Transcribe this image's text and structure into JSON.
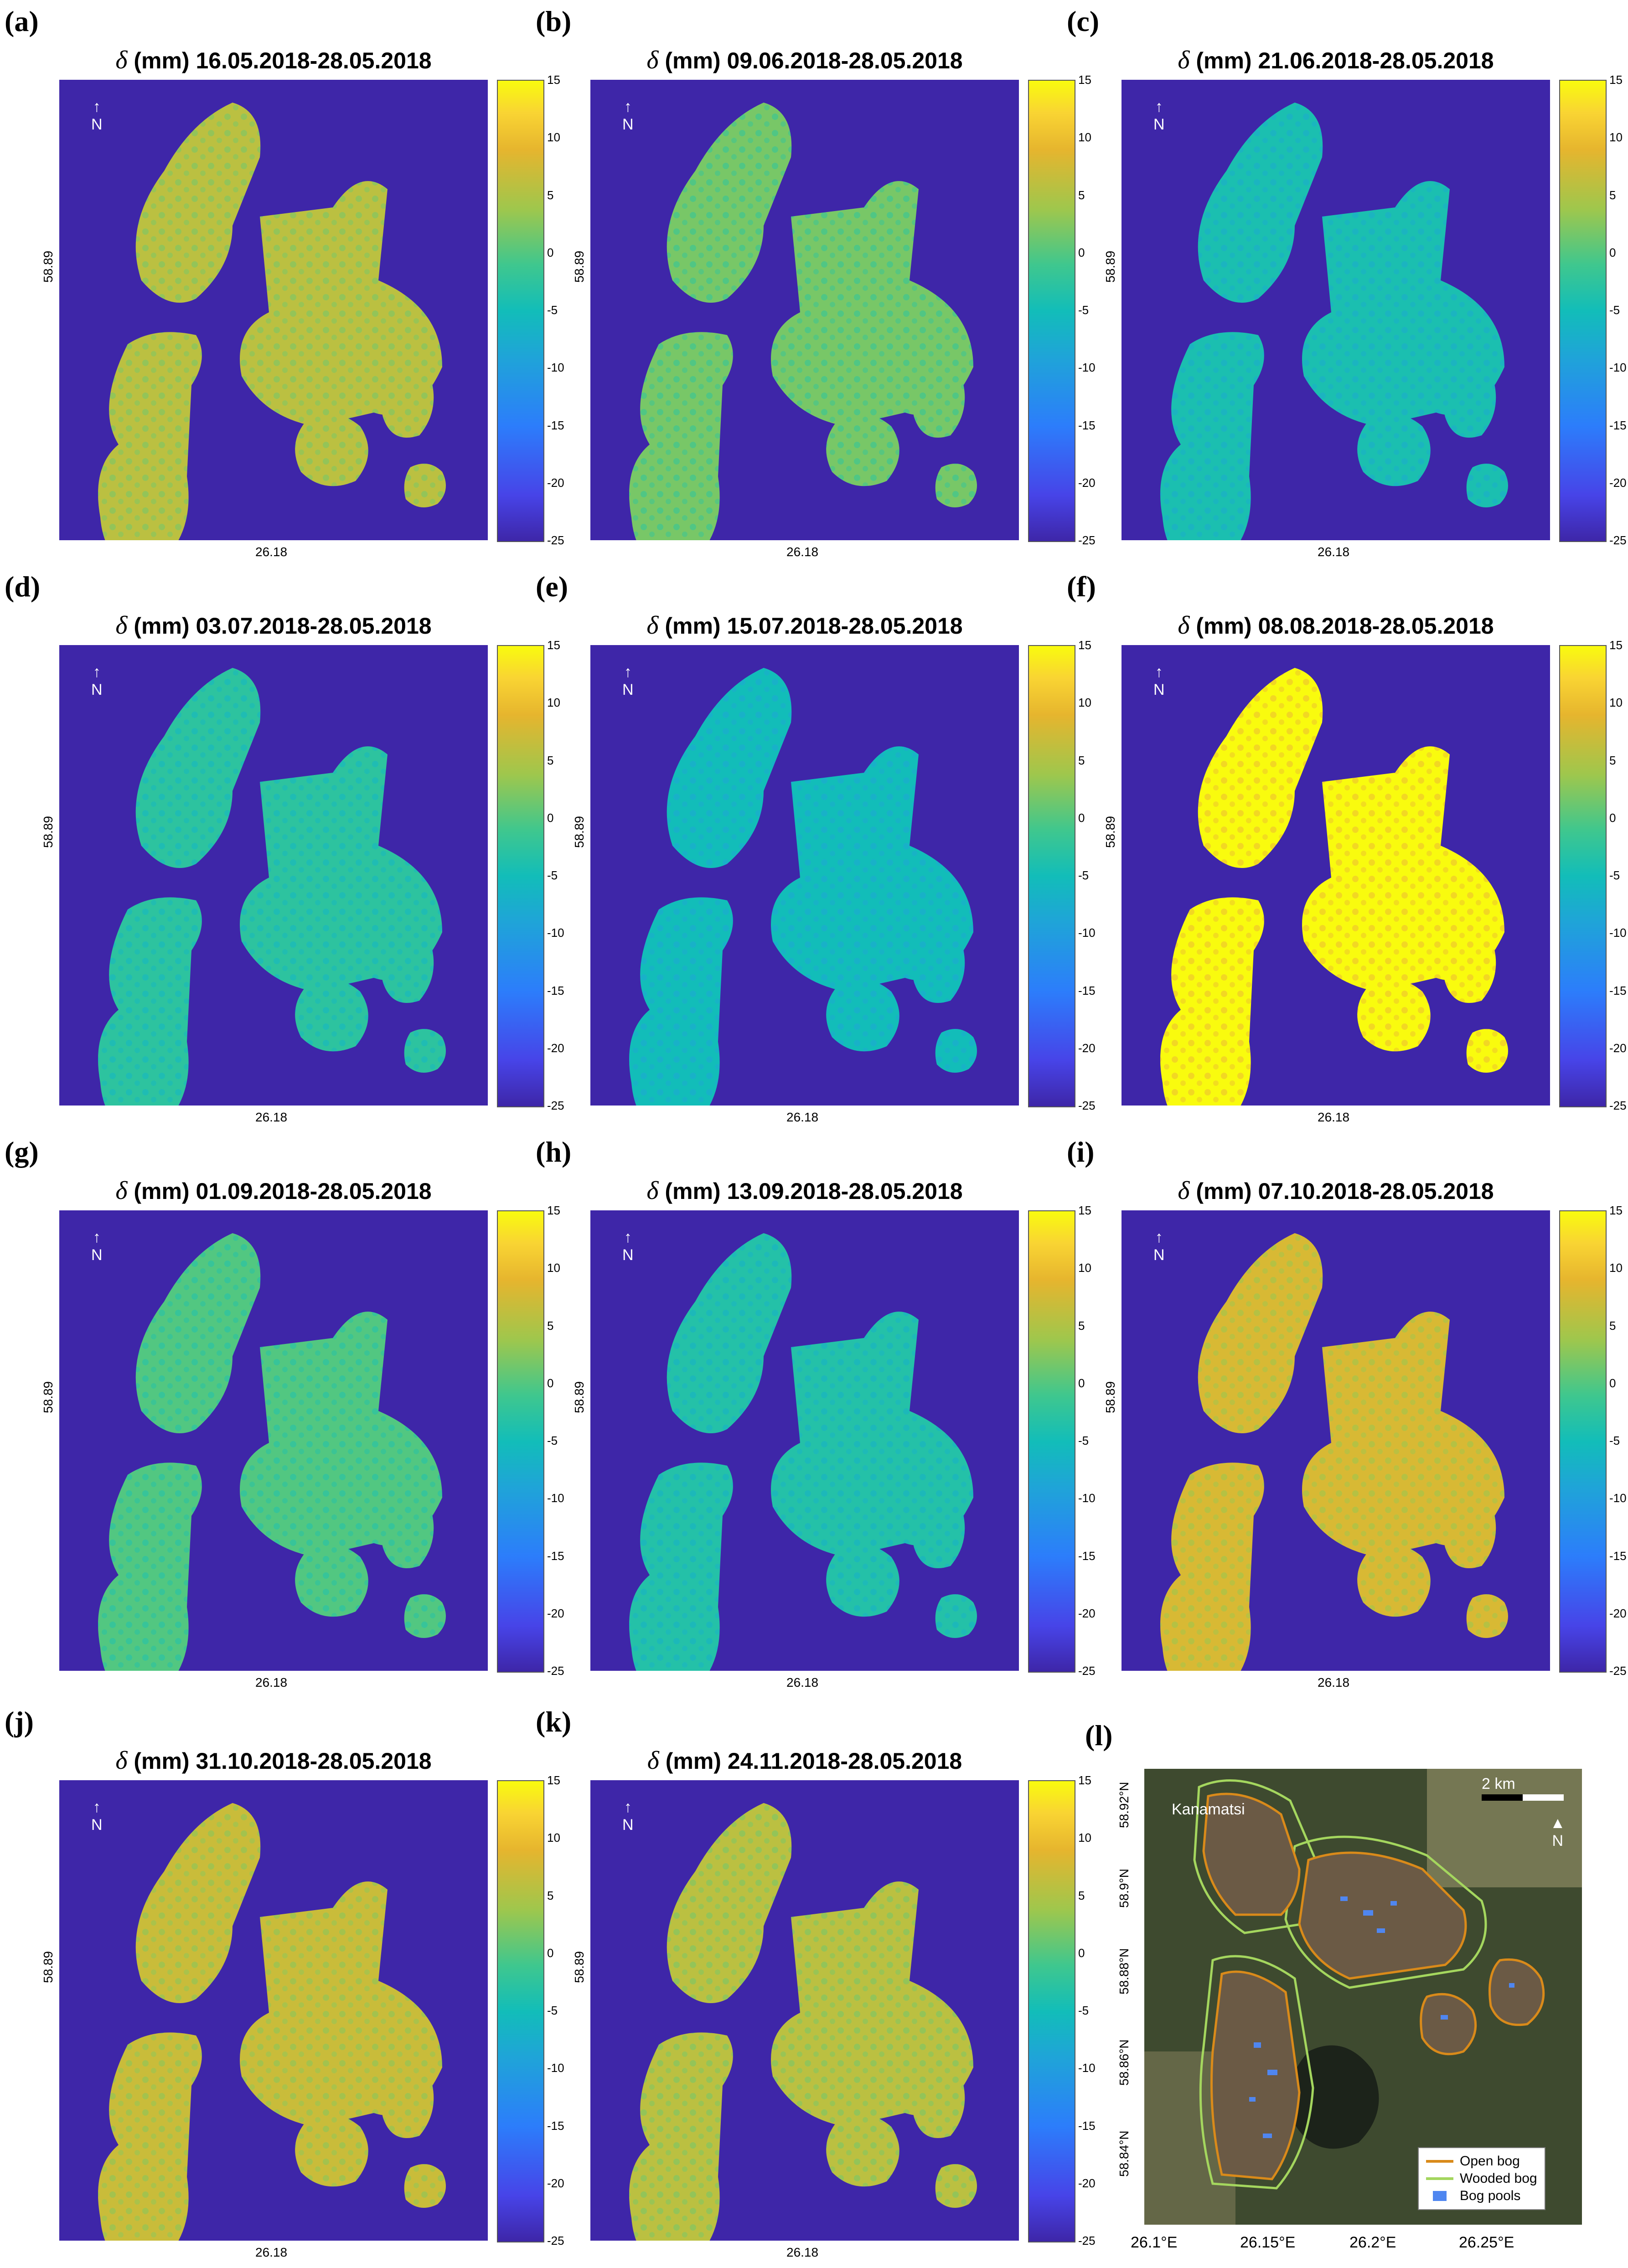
{
  "figure": {
    "colormap": "parula",
    "background_color": "#3e26a8",
    "colorbar_ticks": [
      "15",
      "10",
      "5",
      "0",
      "-5",
      "-10",
      "-15",
      "-20",
      "-25"
    ],
    "x_tick": "26.18",
    "y_tick": "58.89",
    "north_label": "N"
  },
  "chart_data": [
    {
      "type": "heatmap",
      "label": "(a)",
      "title_symbol": "δ",
      "title_text": " (mm) 16.05.2018-28.05.2018",
      "clim": [
        -25,
        15
      ],
      "dominant_value_mm": 7
    },
    {
      "type": "heatmap",
      "label": "(b)",
      "title_symbol": "δ",
      "title_text": " (mm) 09.06.2018-28.05.2018",
      "clim": [
        -25,
        15
      ],
      "dominant_value_mm": 3
    },
    {
      "type": "heatmap",
      "label": "(c)",
      "title_symbol": "δ",
      "title_text": " (mm) 21.06.2018-28.05.2018",
      "clim": [
        -25,
        15
      ],
      "dominant_value_mm": -4
    },
    {
      "type": "heatmap",
      "label": "(d)",
      "title_symbol": "δ",
      "title_text": " (mm) 03.07.2018-28.05.2018",
      "clim": [
        -25,
        15
      ],
      "dominant_value_mm": -2
    },
    {
      "type": "heatmap",
      "label": "(e)",
      "title_symbol": "δ",
      "title_text": " (mm) 15.07.2018-28.05.2018",
      "clim": [
        -25,
        15
      ],
      "dominant_value_mm": -5
    },
    {
      "type": "heatmap",
      "label": "(f)",
      "title_symbol": "δ",
      "title_text": " (mm) 08.08.2018-28.05.2018",
      "clim": [
        -25,
        15
      ],
      "dominant_value_mm": 15
    },
    {
      "type": "heatmap",
      "label": "(g)",
      "title_symbol": "δ",
      "title_text": " (mm) 01.09.2018-28.05.2018",
      "clim": [
        -25,
        15
      ],
      "dominant_value_mm": 1
    },
    {
      "type": "heatmap",
      "label": "(h)",
      "title_symbol": "δ",
      "title_text": " (mm) 13.09.2018-28.05.2018",
      "clim": [
        -25,
        15
      ],
      "dominant_value_mm": -3
    },
    {
      "type": "heatmap",
      "label": "(i)",
      "title_symbol": "δ",
      "title_text": " (mm) 07.10.2018-28.05.2018",
      "clim": [
        -25,
        15
      ],
      "dominant_value_mm": 9
    },
    {
      "type": "heatmap",
      "label": "(j)",
      "title_symbol": "δ",
      "title_text": " (mm) 31.10.2018-28.05.2018",
      "clim": [
        -25,
        15
      ],
      "dominant_value_mm": 8
    },
    {
      "type": "heatmap",
      "label": "(k)",
      "title_symbol": "δ",
      "title_text": " (mm) 24.11.2018-28.05.2018",
      "clim": [
        -25,
        15
      ],
      "dominant_value_mm": 7
    }
  ],
  "satellite_panel": {
    "label": "(l)",
    "place_name": "Kanamatsi",
    "scale_label": "2 km",
    "north_label": "N",
    "y_ticks": [
      "58.92°N",
      "58.9°N",
      "58.88°N",
      "58.86°N",
      "58.84°N"
    ],
    "x_ticks": [
      "26.1°E",
      "26.15°E",
      "26.2°E",
      "26.25°E"
    ],
    "legend": [
      {
        "label": "Open bog",
        "color": "#d98a1a"
      },
      {
        "label": "Wooded bog",
        "color": "#a4d65e"
      },
      {
        "label": "Bog pools",
        "color": "#4f86f0"
      }
    ]
  }
}
